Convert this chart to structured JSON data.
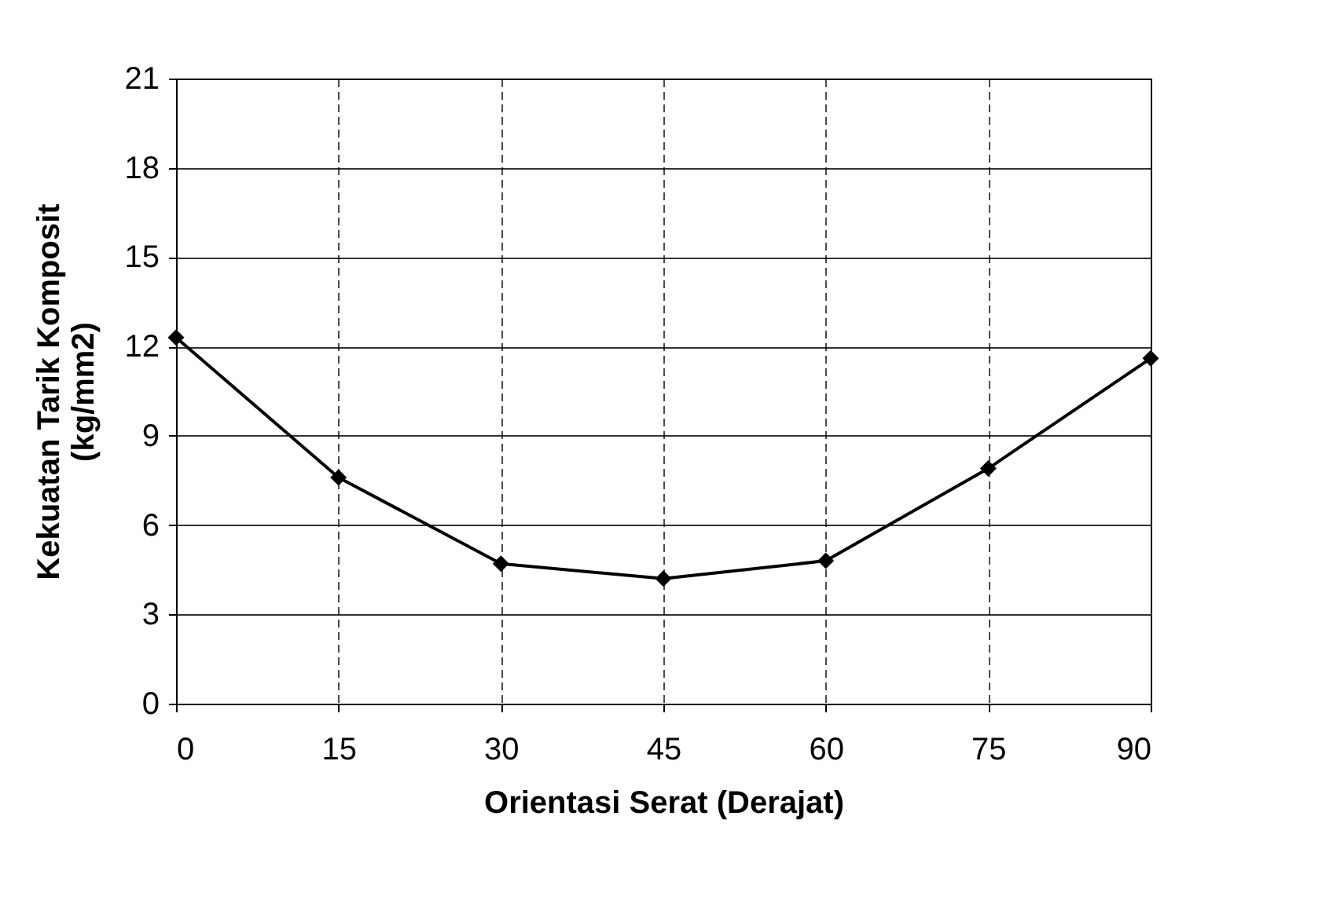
{
  "chart_data": {
    "type": "line",
    "xlabel": "Orientasi Serat (Derajat)",
    "ylabel": "Kekuatan Tarik Komposit\n(kg/mm2)",
    "x": [
      0,
      15,
      30,
      45,
      60,
      75,
      90
    ],
    "series": [
      {
        "color": "#000000",
        "values": [
          12.3,
          7.6,
          4.7,
          4.2,
          4.8,
          7.9,
          11.6
        ]
      }
    ],
    "xlim": [
      0,
      90
    ],
    "xticks": [
      0,
      15,
      30,
      45,
      60,
      75,
      90
    ],
    "ylim": [
      0,
      21
    ],
    "yticks": [
      0,
      3,
      6,
      9,
      12,
      15,
      18,
      21
    ],
    "grid": true,
    "marker": "diamond",
    "line_style": "solid"
  }
}
